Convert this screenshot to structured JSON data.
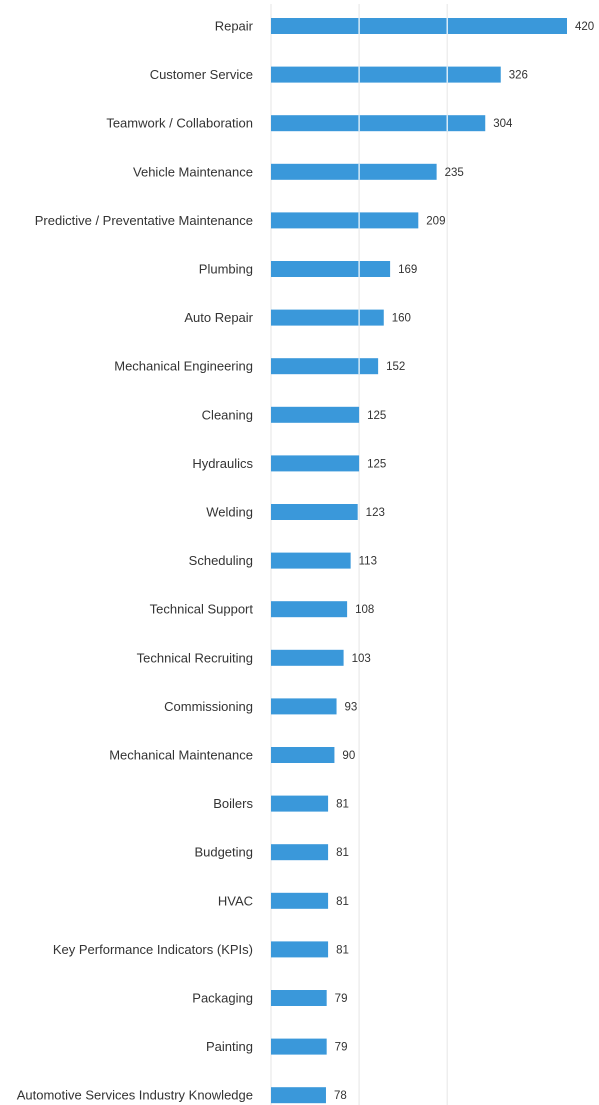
{
  "chart_data": {
    "type": "bar",
    "orientation": "horizontal",
    "categories": [
      "Repair",
      "Customer Service",
      "Teamwork / Collaboration",
      "Vehicle Maintenance",
      "Predictive / Preventative Maintenance",
      "Plumbing",
      "Auto Repair",
      "Mechanical Engineering",
      "Cleaning",
      "Hydraulics",
      "Welding",
      "Scheduling",
      "Technical Support",
      "Technical Recruiting",
      "Commissioning",
      "Mechanical Maintenance",
      "Boilers",
      "Budgeting",
      "HVAC",
      "Key Performance Indicators (KPIs)",
      "Packaging",
      "Painting",
      "Automotive Services Industry Knowledge"
    ],
    "values": [
      420,
      326,
      304,
      235,
      209,
      169,
      160,
      152,
      125,
      125,
      123,
      113,
      108,
      103,
      93,
      90,
      81,
      81,
      81,
      81,
      79,
      79,
      78
    ],
    "value_labels": [
      "420",
      "326",
      "304",
      "235",
      "209",
      "169",
      "160",
      "152",
      "125",
      "125",
      "123",
      "113",
      "108",
      "103",
      "93",
      "90",
      "81",
      "81",
      "81",
      "81",
      "79",
      "79",
      "78"
    ],
    "xlim": [
      0,
      420
    ],
    "gridlines_x": [
      0,
      125,
      250
    ],
    "grid": true,
    "legend": "none",
    "colors": {
      "bar": "#3a98da",
      "gridline": "#e6e6e6",
      "text": "#333333"
    }
  }
}
